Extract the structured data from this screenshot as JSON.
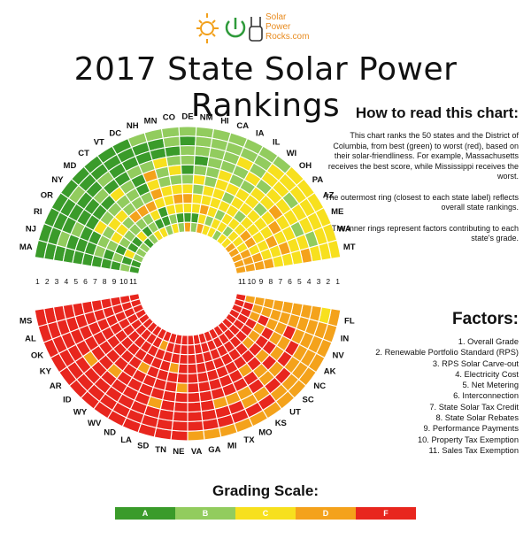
{
  "brand": {
    "name_line1": "Solar",
    "name_line2": "Power",
    "name_line3": "Rocks.com"
  },
  "page_title": "2017 State Solar Power Rankings",
  "howto": {
    "heading": "How to read this chart:",
    "p1": "This chart ranks the 50 states and the District of Columbia, from best (green) to worst (red), based on their solar-friendliness. For example, Massachusetts receives the best score, while Mississippi receives the worst.",
    "p2": "The outermost ring (closest to each state label) reflects overall state rankings.",
    "p3": "The inner rings represent factors contributing to each state's grade."
  },
  "factors_heading": "Factors:",
  "grading_title": "Grading Scale:",
  "grades": [
    "A",
    "B",
    "C",
    "D",
    "F"
  ],
  "colors": {
    "A": "#3a9b2a",
    "B": "#92cc5e",
    "C": "#f7e01e",
    "D": "#f4a21b",
    "F": "#e8261e"
  },
  "chart_data": {
    "type": "radial-heatmap",
    "title": "2017 State Solar Power Rankings",
    "factors": [
      "1. Overall Grade",
      "2. Renewable Portfolio Standard (RPS)",
      "3. RPS Solar Carve-out",
      "4. Electricity Cost",
      "5. Net Metering",
      "6. Interconnection",
      "7. State Solar Tax Credit",
      "8. State Solar Rebates",
      "9. Performance Payments",
      "10. Property Tax Exemption",
      "11. Sales Tax Exemption"
    ],
    "ring_numbers": [
      "1",
      "2",
      "3",
      "4",
      "5",
      "6",
      "7",
      "8",
      "9",
      "10",
      "11"
    ],
    "top_states": [
      "MA",
      "NJ",
      "RI",
      "OR",
      "NY",
      "MD",
      "CT",
      "VT",
      "DC",
      "NH",
      "MN",
      "CO",
      "DE",
      "NM",
      "HI",
      "CA",
      "IA",
      "IL",
      "WI",
      "OH",
      "PA",
      "AZ",
      "ME",
      "WA",
      "MT"
    ],
    "bottom_states": [
      "FL",
      "IN",
      "NV",
      "AK",
      "NC",
      "SC",
      "UT",
      "KS",
      "MO",
      "TX",
      "MI",
      "GA",
      "VA",
      "NE",
      "TN",
      "SD",
      "LA",
      "ND",
      "WV",
      "WY",
      "ID",
      "AR",
      "KY",
      "OK",
      "AL",
      "MS"
    ],
    "top_grades": [
      "AAAAAAAAABA",
      "AABAAABABAA",
      "AAABAABBACB",
      "AAAAACBCBAB",
      "ABAAABCCBAB",
      "AAABABCBBCA",
      "AABACBBDBAB",
      "AAAABBBDBBC",
      "AAABAABDCAC",
      "BAABDCDCAAB",
      "BAACBBCCCBC",
      "BBABCBCDCAB",
      "BABBABCDCAD",
      "BBBABCBCCAB",
      "BBBBBBCCDCD",
      "BBBBCCCCCBC",
      "BBCBBCBCBCC",
      "BBBCBCCCCCB",
      "BCCBCCCBCBC",
      "CCCCCBCCCCC",
      "CCBCDCCCDCD",
      "CCCCCDCCDCD",
      "CCCBCCDCCDD",
      "CCBCCDCCDDD",
      "CCCDCCCDDDD"
    ],
    "bottom_grades": [
      "DCDDDDDDDDF",
      "DDDDDDDDDFF",
      "DDDDFDDFDFF",
      "DDDFDDFDFFF",
      "DDDFDFFDFFF",
      "DDFDFDFDFFF",
      "DDFDDFFFFFF",
      "DFDFFDFFFFF",
      "DFDDFFFFFFF",
      "DFFDFFFFFFF",
      "DFFDFFFFFFF",
      "DFFFFFFFFFF",
      "DFFFFFFFFFF",
      "FFFFFDFFFFF",
      "FFFFFFFDFFF",
      "FFFDFFFFFFF",
      "FFFFFFFFFDF",
      "FFFFFFDFFFF",
      "FFFFFFFFFFF",
      "FFFFDFFFFFF",
      "FFFFFFFFFFF",
      "FFFDFFFFFFF",
      "FFFFFFFFFFF",
      "FFFFFFFFFFF",
      "FFFFFFFFFFF",
      "FFFFFFFFFFF"
    ]
  }
}
